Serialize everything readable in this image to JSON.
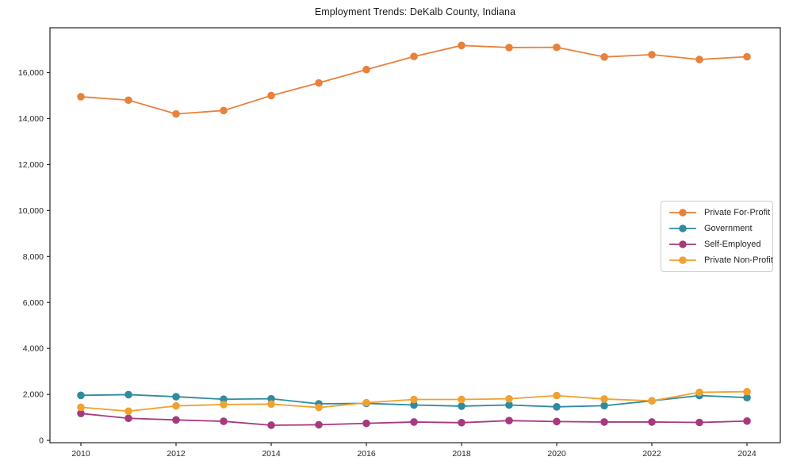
{
  "title": "Employment Trends: DeKalb County, Indiana",
  "chart_data": {
    "type": "line",
    "title": "Employment Trends: DeKalb County, Indiana",
    "xlabel": "",
    "ylabel": "",
    "grid": false,
    "legend_position": "center right",
    "x": [
      2010,
      2011,
      2012,
      2013,
      2014,
      2015,
      2016,
      2017,
      2018,
      2019,
      2020,
      2021,
      2022,
      2023,
      2024
    ],
    "xticks": [
      2010,
      2012,
      2014,
      2016,
      2018,
      2020,
      2022,
      2024
    ],
    "yticks": [
      0,
      2000,
      4000,
      6000,
      8000,
      10000,
      12000,
      14000,
      16000
    ],
    "xlim": [
      2009.35,
      2024.7
    ],
    "ylim": [
      -100,
      17950
    ],
    "axis_color": "#262626",
    "series": [
      {
        "name": "Private For-Profit",
        "color": "#e8813c",
        "values": [
          14950,
          14800,
          14200,
          14350,
          15000,
          15550,
          16130,
          16700,
          17180,
          17090,
          17100,
          16680,
          16780,
          16570,
          16690
        ]
      },
      {
        "name": "Government",
        "color": "#2f8ba0",
        "values": [
          1960,
          1990,
          1900,
          1790,
          1810,
          1590,
          1610,
          1540,
          1490,
          1540,
          1460,
          1510,
          1720,
          1950,
          1860
        ]
      },
      {
        "name": "Self-Employed",
        "color": "#a63a7d",
        "values": [
          1170,
          960,
          890,
          830,
          660,
          680,
          740,
          800,
          770,
          860,
          820,
          800,
          800,
          780,
          840
        ]
      },
      {
        "name": "Private Non-Profit",
        "color": "#f0a12f",
        "values": [
          1440,
          1270,
          1500,
          1560,
          1580,
          1430,
          1640,
          1780,
          1780,
          1810,
          1950,
          1800,
          1720,
          2090,
          2120
        ]
      }
    ]
  }
}
